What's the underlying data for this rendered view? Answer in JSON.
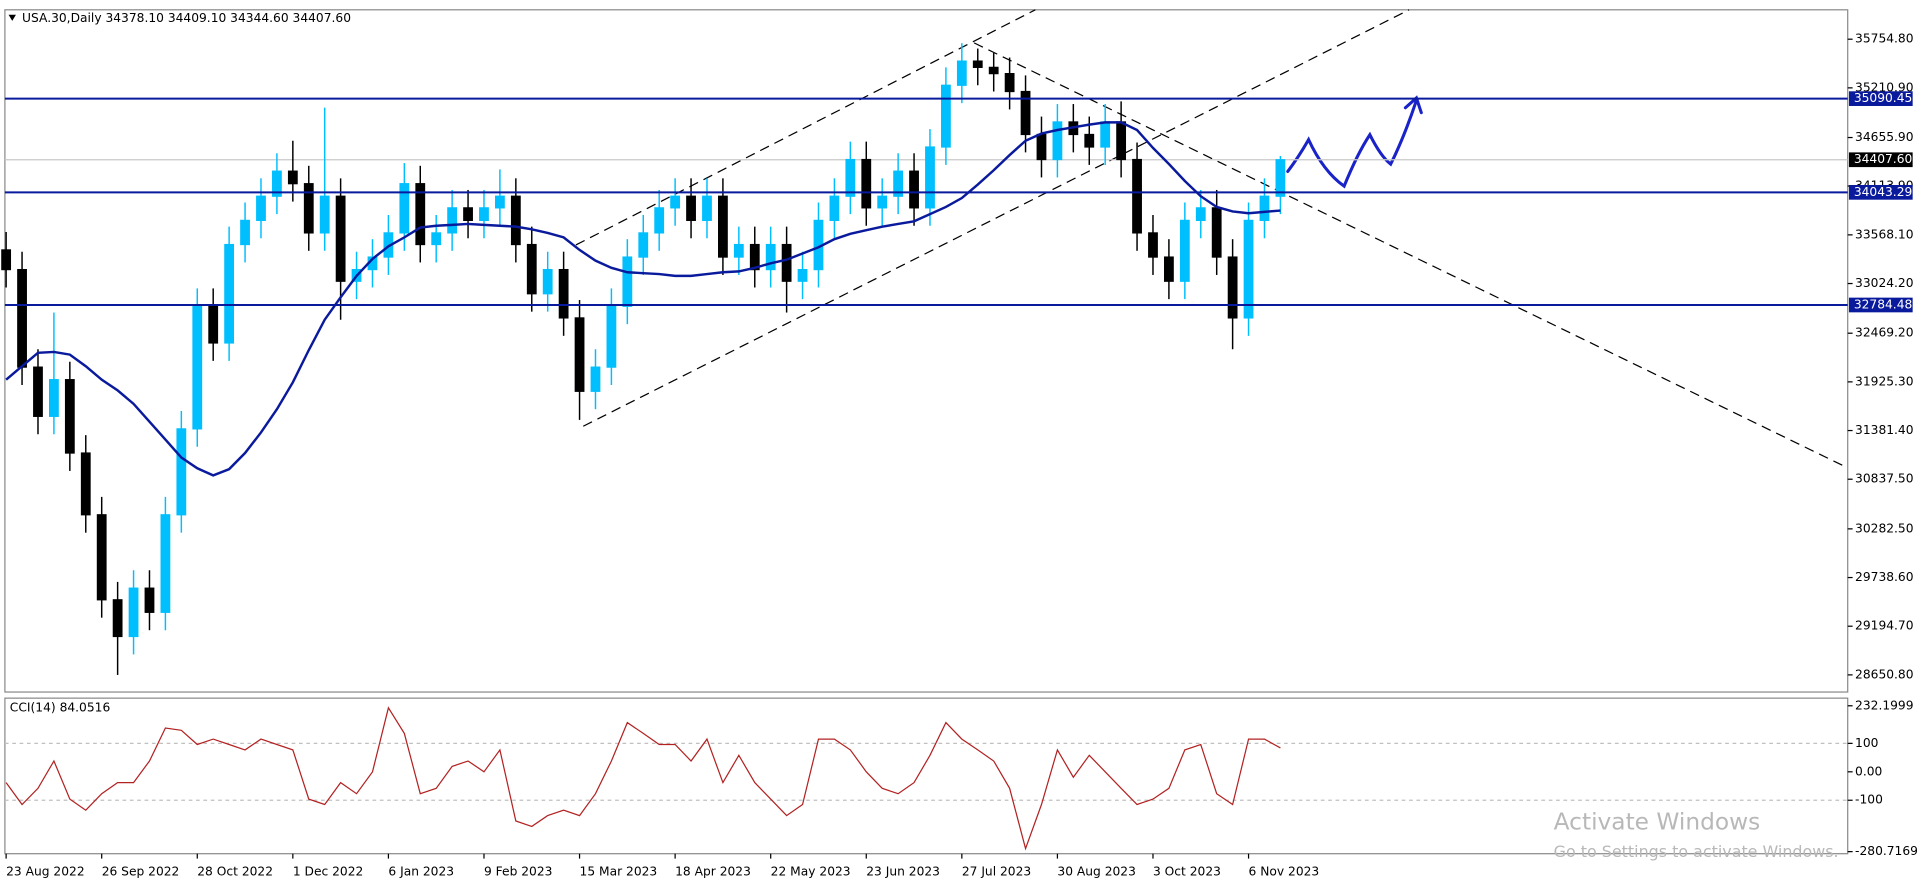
{
  "chart_data": {
    "type": "candlestick",
    "title": "USA.30,Daily  34378.10 34409.10 34344.60 34407.60",
    "categories": [
      "23 Aug 2022",
      null,
      null,
      null,
      null,
      null,
      "26 Sep 2022",
      null,
      null,
      null,
      null,
      null,
      "28 Oct 2022",
      null,
      null,
      null,
      null,
      null,
      "1 Dec 2022",
      null,
      null,
      null,
      null,
      null,
      "6 Jan 2023",
      null,
      null,
      null,
      null,
      null,
      "9 Feb 2023",
      null,
      null,
      null,
      null,
      null,
      "15 Mar 2023",
      null,
      null,
      null,
      null,
      null,
      "18 Apr 2023",
      null,
      null,
      null,
      null,
      null,
      "22 May 2023",
      null,
      null,
      null,
      null,
      null,
      "23 Jun 2023",
      null,
      null,
      null,
      null,
      null,
      "27 Jul 2023",
      null,
      null,
      null,
      null,
      null,
      "30 Aug 2023",
      null,
      null,
      null,
      null,
      null,
      "3 Oct 2023",
      null,
      null,
      null,
      null,
      null,
      "6 Nov 2023",
      null,
      null
    ],
    "open": [
      33400,
      33180,
      32090,
      31540,
      31950,
      31130,
      30440,
      29490,
      29080,
      29620,
      29350,
      30440,
      31400,
      32770,
      32360,
      33460,
      33730,
      34000,
      34280,
      34140,
      33590,
      34000,
      33050,
      33180,
      33320,
      33590,
      34140,
      33460,
      33590,
      33870,
      33730,
      33870,
      34000,
      33460,
      32910,
      33180,
      32640,
      31820,
      32090,
      32770,
      33320,
      33590,
      33870,
      34000,
      33730,
      34000,
      33320,
      33460,
      33180,
      33460,
      33050,
      33180,
      33730,
      34000,
      34410,
      33870,
      34000,
      34280,
      33870,
      34550,
      35240,
      35510,
      35440,
      35370,
      35170,
      34690,
      34410,
      34830,
      34690,
      34550,
      34830,
      34410,
      33590,
      33320,
      33050,
      33730,
      33870,
      33320,
      32640,
      33730,
      34000
    ],
    "high": [
      33600,
      33380,
      32290,
      32700,
      32150,
      31330,
      30640,
      29690,
      29820,
      29820,
      30640,
      31600,
      32970,
      32970,
      33660,
      33930,
      34200,
      34480,
      34620,
      34340,
      34990,
      34200,
      33380,
      33520,
      33790,
      34370,
      34340,
      33790,
      34070,
      34070,
      34070,
      34300,
      34200,
      33660,
      33380,
      33380,
      32840,
      32290,
      32970,
      33520,
      33790,
      34070,
      34200,
      34200,
      34200,
      34200,
      33660,
      33660,
      33660,
      33660,
      33380,
      33930,
      34200,
      34610,
      34610,
      34200,
      34480,
      34480,
      34750,
      35440,
      35710,
      35650,
      35600,
      35550,
      35350,
      34890,
      35030,
      35030,
      34890,
      35030,
      35060,
      34600,
      33790,
      33520,
      33930,
      34070,
      34070,
      33520,
      33930,
      34200,
      34450
    ],
    "low": [
      32980,
      31890,
      31340,
      31340,
      30930,
      30240,
      29290,
      28650,
      28880,
      29150,
      29150,
      30240,
      31200,
      32160,
      32160,
      33260,
      33530,
      33800,
      33940,
      33390,
      33390,
      32620,
      32850,
      32980,
      33120,
      33390,
      33260,
      33260,
      33390,
      33530,
      33530,
      33670,
      33260,
      32710,
      32710,
      32440,
      31500,
      31620,
      31890,
      32570,
      33120,
      33390,
      33670,
      33530,
      33530,
      33120,
      33120,
      32980,
      32980,
      32700,
      32850,
      32980,
      33530,
      33800,
      33670,
      33670,
      33800,
      33670,
      33670,
      34350,
      35040,
      35240,
      35170,
      34970,
      34490,
      34210,
      34210,
      34490,
      34350,
      34350,
      34210,
      33390,
      33120,
      32850,
      32850,
      33530,
      33120,
      32290,
      32440,
      33530,
      33800
    ],
    "close": [
      33180,
      32090,
      31540,
      31950,
      31130,
      30440,
      29490,
      29080,
      29620,
      29350,
      30440,
      31400,
      32770,
      32360,
      33460,
      33730,
      34000,
      34280,
      34140,
      33590,
      34000,
      33050,
      33180,
      33320,
      33590,
      34140,
      33460,
      33590,
      33870,
      33730,
      33870,
      34000,
      33460,
      32910,
      33180,
      32640,
      31820,
      32090,
      32770,
      33320,
      33590,
      33870,
      34000,
      33730,
      34000,
      33320,
      33460,
      33180,
      33460,
      33050,
      33180,
      33730,
      34000,
      34410,
      33870,
      34000,
      34280,
      33870,
      34550,
      35240,
      35510,
      35440,
      35370,
      35170,
      34690,
      34410,
      34830,
      34690,
      34550,
      34830,
      34410,
      33590,
      33320,
      33050,
      33730,
      33870,
      33320,
      32640,
      33730,
      34000,
      34407.6
    ],
    "up_color": "#00bfff",
    "down_color": "#000000",
    "moving_average": {
      "color": "#0a1a9c",
      "values": [
        31950,
        32100,
        32250,
        32260,
        32230,
        32100,
        31950,
        31830,
        31680,
        31480,
        31280,
        31080,
        30960,
        30880,
        30950,
        31130,
        31360,
        31620,
        31920,
        32280,
        32620,
        32870,
        33110,
        33300,
        33440,
        33540,
        33650,
        33670,
        33680,
        33690,
        33680,
        33670,
        33660,
        33630,
        33590,
        33540,
        33400,
        33280,
        33200,
        33150,
        33140,
        33130,
        33110,
        33110,
        33130,
        33150,
        33160,
        33200,
        33250,
        33290,
        33360,
        33430,
        33520,
        33580,
        33620,
        33660,
        33690,
        33720,
        33800,
        33880,
        33980,
        34130,
        34290,
        34460,
        34620,
        34700,
        34740,
        34770,
        34800,
        34825,
        34825,
        34740,
        34540,
        34360,
        34170,
        34000,
        33880,
        33830,
        33810,
        33825,
        33840
      ]
    },
    "ylim": [
      28459.2,
      36083.3
    ],
    "yticks": [
      {
        "value": 35754.8,
        "label": "35754.80"
      },
      {
        "value": 35210.9,
        "label": "35210.90"
      },
      {
        "value": 34655.9,
        "label": "34655.90"
      },
      {
        "value": 34113.9,
        "label": "34113.90"
      },
      {
        "value": 33568.1,
        "label": "33568.10"
      },
      {
        "value": 33024.2,
        "label": "33024.20"
      },
      {
        "value": 32469.2,
        "label": "32469.20"
      },
      {
        "value": 31925.3,
        "label": "31925.30"
      },
      {
        "value": 31381.4,
        "label": "31381.40"
      },
      {
        "value": 30837.5,
        "label": "30837.50"
      },
      {
        "value": 30282.5,
        "label": "30282.50"
      },
      {
        "value": 29738.6,
        "label": "29738.60"
      },
      {
        "value": 29194.7,
        "label": "29194.70"
      },
      {
        "value": 28650.8,
        "label": "28650.80"
      }
    ],
    "levels": [
      {
        "value": 35090.45,
        "label": "35090.45"
      },
      {
        "value": 34043.29,
        "label": "34043.29"
      },
      {
        "value": 32784.48,
        "label": "32784.48"
      }
    ],
    "level_color": "#0a1a9c",
    "price_line": {
      "value": 34407.6,
      "label": "34407.60"
    },
    "indicator": {
      "type": "line",
      "title": "CCI(14) 84.0516",
      "color": "#b22222",
      "values": [
        -38,
        -115,
        -58,
        38,
        -96,
        -135,
        -77,
        -38,
        -38,
        38,
        154,
        146,
        96,
        115,
        96,
        77,
        115,
        96,
        77,
        -96,
        -115,
        -38,
        -77,
        0,
        225,
        135,
        -77,
        -58,
        19,
        38,
        0,
        77,
        -173,
        -192,
        -154,
        -135,
        -154,
        -77,
        38,
        173,
        135,
        96,
        96,
        38,
        115,
        -38,
        58,
        -38,
        -96,
        -154,
        -115,
        115,
        115,
        77,
        0,
        -58,
        -77,
        -38,
        58,
        173,
        115,
        77,
        38,
        -58,
        -270,
        -115,
        77,
        -19,
        58,
        0,
        -58,
        -115,
        -96,
        -58,
        77,
        96,
        -77,
        -115,
        115,
        115,
        84.0516
      ],
      "ylim": [
        -288,
        259
      ],
      "yticks": [
        232.1999,
        100,
        {
          "value": 0,
          "label": "0.00"
        },
        -100,
        -280.7169
      ],
      "levels": [
        100,
        -100
      ]
    }
  },
  "watermark": {
    "title": "Activate Windows",
    "subtitle": "Go to Settings to activate Windows."
  }
}
